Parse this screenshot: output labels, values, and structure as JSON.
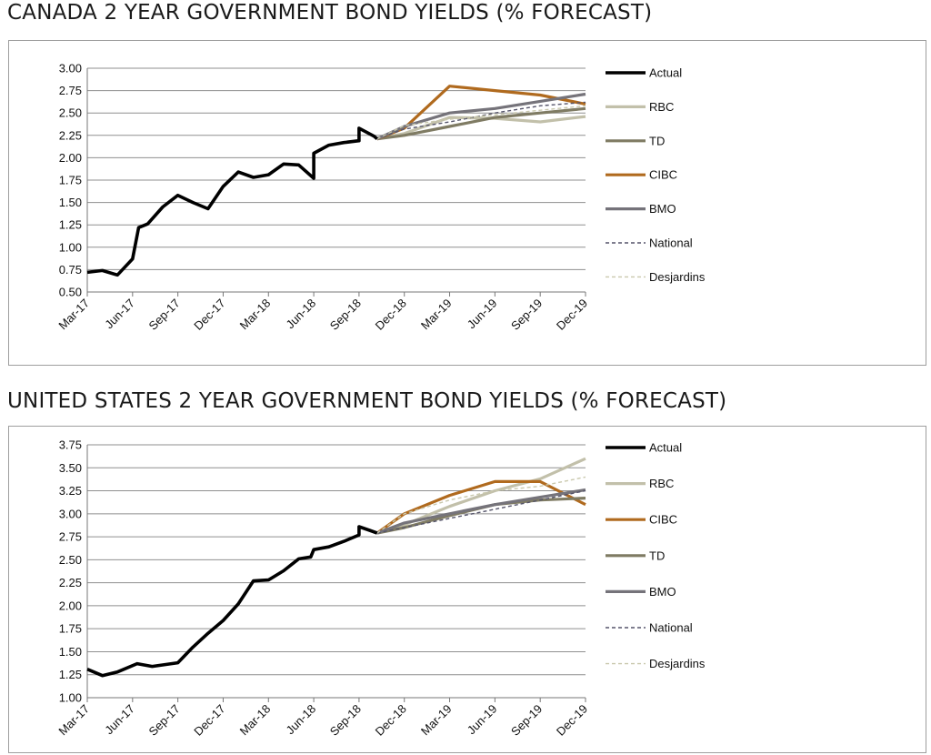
{
  "colors": {
    "Actual": "#000000",
    "RBC": "#c2c0aa",
    "TD": "#7f7b63",
    "CIBC": "#b06a1e",
    "BMO": "#75737a",
    "National": "#55546a",
    "Desjardins": "#c9c8ad",
    "grid": "#8f8f8f"
  },
  "chart_data": [
    {
      "type": "line",
      "title": "CANADA 2 YEAR GOVERNMENT BOND YIELDS (% FORECAST)",
      "ylim": [
        0.5,
        3.0
      ],
      "yticks": [
        "0.50",
        "0.75",
        "1.00",
        "1.25",
        "1.50",
        "1.75",
        "2.00",
        "2.25",
        "2.50",
        "2.75",
        "3.00"
      ],
      "xlim": [
        0,
        33
      ],
      "x_tick_labels": [
        "Mar-17",
        "Jun-17",
        "Sep-17",
        "Dec-17",
        "Mar-18",
        "Jun-18",
        "Sep-18",
        "Dec-18",
        "Mar-19",
        "Jun-19",
        "Sep-19",
        "Dec-19"
      ],
      "grid": true,
      "legend_position": "right",
      "series": [
        {
          "name": "Actual",
          "style": "thick",
          "points": [
            [
              0,
              0.72
            ],
            [
              1,
              0.74
            ],
            [
              2,
              0.69
            ],
            [
              3,
              0.87
            ],
            [
              3.4,
              1.22
            ],
            [
              4,
              1.26
            ],
            [
              5,
              1.45
            ],
            [
              6,
              1.58
            ],
            [
              7,
              1.5
            ],
            [
              8,
              1.43
            ],
            [
              9,
              1.68
            ],
            [
              10,
              1.84
            ],
            [
              11,
              1.78
            ],
            [
              12,
              1.81
            ],
            [
              13,
              1.93
            ],
            [
              14,
              1.92
            ],
            [
              15,
              1.77
            ],
            [
              15,
              2.05
            ],
            [
              16,
              2.14
            ],
            [
              17,
              2.17
            ],
            [
              18,
              2.19
            ],
            [
              18,
              2.33
            ],
            [
              19,
              2.24
            ],
            [
              19.2,
              2.21
            ]
          ]
        },
        {
          "name": "RBC",
          "style": "solid",
          "points": [
            [
              19.2,
              2.21
            ],
            [
              21,
              2.27
            ],
            [
              24,
              2.45
            ],
            [
              27,
              2.44
            ],
            [
              30,
              2.4
            ],
            [
              33,
              2.46
            ]
          ]
        },
        {
          "name": "TD",
          "style": "solid",
          "points": [
            [
              19.2,
              2.21
            ],
            [
              21,
              2.25
            ],
            [
              24,
              2.35
            ],
            [
              27,
              2.45
            ],
            [
              30,
              2.5
            ],
            [
              33,
              2.55
            ]
          ]
        },
        {
          "name": "CIBC",
          "style": "solid",
          "points": [
            [
              19.2,
              2.21
            ],
            [
              21,
              2.33
            ],
            [
              24,
              2.8
            ],
            [
              27,
              2.75
            ],
            [
              30,
              2.7
            ],
            [
              33,
              2.6
            ]
          ]
        },
        {
          "name": "BMO",
          "style": "solid",
          "points": [
            [
              19.2,
              2.21
            ],
            [
              21,
              2.35
            ],
            [
              24,
              2.5
            ],
            [
              27,
              2.55
            ],
            [
              30,
              2.63
            ],
            [
              33,
              2.71
            ]
          ]
        },
        {
          "name": "National",
          "style": "dash",
          "points": [
            [
              19.2,
              2.21
            ],
            [
              21,
              2.32
            ],
            [
              24,
              2.4
            ],
            [
              27,
              2.5
            ],
            [
              30,
              2.58
            ],
            [
              33,
              2.62
            ]
          ]
        },
        {
          "name": "Desjardins",
          "style": "dash",
          "points": [
            [
              19.2,
              2.21
            ],
            [
              21,
              2.36
            ],
            [
              24,
              2.43
            ],
            [
              27,
              2.48
            ],
            [
              30,
              2.53
            ],
            [
              33,
              2.58
            ]
          ]
        }
      ],
      "legend": [
        "Actual",
        "RBC",
        "TD",
        "CIBC",
        "BMO",
        "National",
        "Desjardins"
      ]
    },
    {
      "type": "line",
      "title": "UNITED STATES 2 YEAR GOVERNMENT BOND YIELDS (% FORECAST)",
      "ylim": [
        1.0,
        3.75
      ],
      "yticks": [
        "1.00",
        "1.25",
        "1.50",
        "1.75",
        "2.00",
        "2.25",
        "2.50",
        "2.75",
        "3.00",
        "3.25",
        "3.50",
        "3.75"
      ],
      "xlim": [
        0,
        33
      ],
      "x_tick_labels": [
        "Mar-17",
        "Jun-17",
        "Sep-17",
        "Dec-17",
        "Mar-18",
        "Jun-18",
        "Sep-18",
        "Dec-18",
        "Mar-19",
        "Jun-19",
        "Sep-19",
        "Dec-19"
      ],
      "grid": true,
      "legend_position": "right",
      "series": [
        {
          "name": "Actual",
          "style": "thick",
          "points": [
            [
              0,
              1.31
            ],
            [
              1,
              1.24
            ],
            [
              2,
              1.28
            ],
            [
              3.3,
              1.37
            ],
            [
              4.3,
              1.34
            ],
            [
              6,
              1.38
            ],
            [
              7,
              1.55
            ],
            [
              8,
              1.7
            ],
            [
              9,
              1.84
            ],
            [
              10,
              2.02
            ],
            [
              11,
              2.27
            ],
            [
              12,
              2.28
            ],
            [
              13,
              2.38
            ],
            [
              14,
              2.51
            ],
            [
              14.8,
              2.53
            ],
            [
              15,
              2.61
            ],
            [
              16,
              2.64
            ],
            [
              17,
              2.7
            ],
            [
              18,
              2.77
            ],
            [
              18,
              2.86
            ],
            [
              18.7,
              2.82
            ],
            [
              19.2,
              2.79
            ]
          ]
        },
        {
          "name": "RBC",
          "style": "solid",
          "points": [
            [
              19.2,
              2.79
            ],
            [
              21,
              2.88
            ],
            [
              24,
              3.08
            ],
            [
              27,
              3.25
            ],
            [
              30,
              3.38
            ],
            [
              33,
              3.6
            ]
          ]
        },
        {
          "name": "CIBC",
          "style": "solid",
          "points": [
            [
              19.2,
              2.79
            ],
            [
              21,
              3.0
            ],
            [
              24,
              3.2
            ],
            [
              27,
              3.35
            ],
            [
              30,
              3.35
            ],
            [
              33,
              3.1
            ]
          ]
        },
        {
          "name": "TD",
          "style": "solid",
          "points": [
            [
              19.2,
              2.79
            ],
            [
              21,
              2.85
            ],
            [
              24,
              2.98
            ],
            [
              27,
              3.1
            ],
            [
              30,
              3.15
            ],
            [
              33,
              3.17
            ]
          ]
        },
        {
          "name": "BMO",
          "style": "solid",
          "points": [
            [
              19.2,
              2.79
            ],
            [
              21,
              2.9
            ],
            [
              24,
              3.0
            ],
            [
              27,
              3.1
            ],
            [
              30,
              3.18
            ],
            [
              33,
              3.26
            ]
          ]
        },
        {
          "name": "National",
          "style": "dash",
          "points": [
            [
              19.2,
              2.79
            ],
            [
              21,
              2.85
            ],
            [
              24,
              2.95
            ],
            [
              27,
              3.05
            ],
            [
              30,
              3.15
            ],
            [
              33,
              3.25
            ]
          ]
        },
        {
          "name": "Desjardins",
          "style": "dash",
          "points": [
            [
              19.2,
              2.79
            ],
            [
              21,
              3.0
            ],
            [
              24,
              3.15
            ],
            [
              27,
              3.25
            ],
            [
              30,
              3.3
            ],
            [
              33,
              3.4
            ]
          ]
        }
      ],
      "legend": [
        "Actual",
        "RBC",
        "CIBC",
        "TD",
        "BMO",
        "National",
        "Desjardins"
      ]
    }
  ]
}
